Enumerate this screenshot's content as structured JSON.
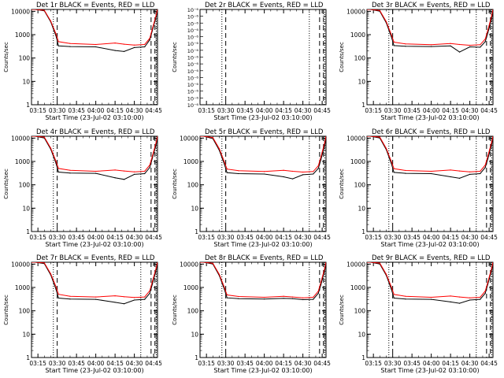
{
  "chart_data": [
    {
      "type": "line",
      "title": "Det 1r BLACK = Events, RED = LLD",
      "xlabel": "Start Time (23-Jul-02 03:10:00)",
      "ylabel": "Counts/sec",
      "xlim": [
        "03:10",
        "04:48"
      ],
      "ylim": [
        1,
        12000
      ],
      "yscale": "log",
      "xticks": [
        "03:15",
        "03:30",
        "03:45",
        "04:00",
        "04:15",
        "04:30",
        "04:45"
      ],
      "yticks": [
        "1",
        "10",
        "100",
        "1000",
        "10000"
      ],
      "x": [
        "03:10",
        "03:13",
        "03:20",
        "03:25",
        "03:29",
        "03:31",
        "03:40",
        "04:00",
        "04:15",
        "04:22",
        "04:30",
        "04:38",
        "04:42",
        "04:44",
        "04:47",
        "04:48"
      ],
      "series": [
        {
          "name": "Events",
          "color": "#000000",
          "values": [
            12000,
            12000,
            10500,
            3500,
            900,
            330,
            310,
            300,
            210,
            190,
            280,
            300,
            600,
            1500,
            6000,
            12000
          ]
        },
        {
          "name": "LLD",
          "color": "#ff0000",
          "values": [
            12000,
            12000,
            11000,
            3800,
            1100,
            500,
            420,
            380,
            440,
            390,
            360,
            380,
            700,
            1800,
            7000,
            12000
          ]
        }
      ],
      "dashed_lines": [
        "03:30",
        "04:43",
        "04:46"
      ],
      "dotted_lines": [
        "03:27",
        "04:35",
        "04:47"
      ]
    },
    {
      "type": "line",
      "title": "Det 2r BLACK = Events, RED = LLD",
      "xlabel": "Start Time (23-Jul-02 03:10:00)",
      "ylabel": "Counts/sec",
      "xlim": [
        "03:10",
        "04:48"
      ],
      "ylim": [
        9e-08,
        1.1e-06
      ],
      "yscale": "log",
      "xticks": [
        "03:15",
        "03:30",
        "03:45",
        "04:00",
        "04:15",
        "04:30",
        "04:45"
      ],
      "yticks": [
        "10⁻⁶",
        "10⁻⁶",
        "10⁻⁶",
        "10⁻⁶",
        "10⁻⁶",
        "10⁻⁶",
        "10⁻⁶",
        "10⁻⁶",
        "10⁻⁶",
        "10⁻⁶",
        "10⁻⁶",
        "10⁻⁶",
        "10⁻⁶",
        "10⁻⁶",
        "10⁻⁶"
      ],
      "x": [],
      "series": [],
      "dashed_lines": [
        "03:30",
        "04:43",
        "04:46"
      ],
      "dotted_lines": [
        "03:27",
        "04:35",
        "04:47"
      ]
    },
    {
      "type": "line",
      "title": "Det 3r BLACK = Events, RED = LLD",
      "xlabel": "Start Time (23-Jul-02 03:10:00)",
      "ylabel": "Counts/sec",
      "xlim": [
        "03:10",
        "04:48"
      ],
      "ylim": [
        1,
        12000
      ],
      "yscale": "log",
      "xticks": [
        "03:15",
        "03:30",
        "03:45",
        "04:00",
        "04:15",
        "04:30",
        "04:45"
      ],
      "yticks": [
        "1",
        "10",
        "100",
        "1000",
        "10000"
      ],
      "x": [
        "03:10",
        "03:13",
        "03:20",
        "03:25",
        "03:29",
        "03:31",
        "03:40",
        "04:00",
        "04:15",
        "04:22",
        "04:30",
        "04:38",
        "04:42",
        "04:44",
        "04:47",
        "04:48"
      ],
      "series": [
        {
          "name": "Events",
          "color": "#000000",
          "values": [
            12000,
            12000,
            10000,
            3200,
            800,
            340,
            320,
            310,
            330,
            180,
            300,
            290,
            500,
            1200,
            5000,
            12000
          ]
        },
        {
          "name": "LLD",
          "color": "#ff0000",
          "values": [
            12000,
            12000,
            10800,
            3600,
            1000,
            480,
            400,
            370,
            420,
            380,
            350,
            370,
            650,
            1600,
            6500,
            12000
          ]
        }
      ],
      "dashed_lines": [
        "03:30",
        "04:43",
        "04:46"
      ],
      "dotted_lines": [
        "03:27",
        "04:35",
        "04:47"
      ]
    },
    {
      "type": "line",
      "title": "Det 4r BLACK = Events, RED = LLD",
      "xlabel": "Start Time (23-Jul-02 03:10:00)",
      "ylabel": "Counts/sec",
      "xlim": [
        "03:10",
        "04:48"
      ],
      "ylim": [
        1,
        12000
      ],
      "yscale": "log",
      "xticks": [
        "03:15",
        "03:30",
        "03:45",
        "04:00",
        "04:15",
        "04:30",
        "04:45"
      ],
      "yticks": [
        "1",
        "10",
        "100",
        "1000",
        "10000"
      ],
      "x": [
        "03:10",
        "03:13",
        "03:20",
        "03:25",
        "03:29",
        "03:31",
        "03:40",
        "04:00",
        "04:15",
        "04:22",
        "04:30",
        "04:38",
        "04:42",
        "04:44",
        "04:47",
        "04:48"
      ],
      "series": [
        {
          "name": "Events",
          "color": "#000000",
          "values": [
            12000,
            12000,
            10000,
            3300,
            850,
            350,
            320,
            310,
            200,
            170,
            280,
            300,
            550,
            1400,
            5500,
            12000
          ]
        },
        {
          "name": "LLD",
          "color": "#ff0000",
          "values": [
            12000,
            12000,
            11000,
            3700,
            1050,
            500,
            420,
            380,
            430,
            390,
            360,
            380,
            700,
            1700,
            6800,
            12000
          ]
        }
      ],
      "dashed_lines": [
        "03:30",
        "04:43",
        "04:46"
      ],
      "dotted_lines": [
        "03:27",
        "04:35",
        "04:47"
      ]
    },
    {
      "type": "line",
      "title": "Det 5r BLACK = Events, RED = LLD",
      "xlabel": "Start Time (23-Jul-02 03:10:00)",
      "ylabel": "Counts/sec",
      "xlim": [
        "03:10",
        "04:48"
      ],
      "ylim": [
        1,
        12000
      ],
      "yscale": "log",
      "xticks": [
        "03:15",
        "03:30",
        "03:45",
        "04:00",
        "04:15",
        "04:30",
        "04:45"
      ],
      "yticks": [
        "1",
        "10",
        "100",
        "1000",
        "10000"
      ],
      "x": [
        "03:10",
        "03:13",
        "03:20",
        "03:25",
        "03:29",
        "03:31",
        "03:40",
        "04:00",
        "04:15",
        "04:22",
        "04:30",
        "04:38",
        "04:42",
        "04:44",
        "04:47",
        "04:48"
      ],
      "series": [
        {
          "name": "Events",
          "color": "#000000",
          "values": [
            12000,
            12000,
            9500,
            3000,
            750,
            330,
            300,
            290,
            220,
            180,
            270,
            290,
            500,
            1200,
            5000,
            12000
          ]
        },
        {
          "name": "LLD",
          "color": "#ff0000",
          "values": [
            12000,
            12000,
            10500,
            3500,
            950,
            470,
            400,
            370,
            420,
            380,
            350,
            370,
            650,
            1600,
            6500,
            12000
          ]
        }
      ],
      "dashed_lines": [
        "03:30",
        "04:43",
        "04:46"
      ],
      "dotted_lines": [
        "03:27",
        "04:35",
        "04:47"
      ]
    },
    {
      "type": "line",
      "title": "Det 6r BLACK = Events, RED = LLD",
      "xlabel": "Start Time (23-Jul-02 03:10:00)",
      "ylabel": "Counts/sec",
      "xlim": [
        "03:10",
        "04:48"
      ],
      "ylim": [
        1,
        12000
      ],
      "yscale": "log",
      "xticks": [
        "03:15",
        "03:30",
        "03:45",
        "04:00",
        "04:15",
        "04:30",
        "04:45"
      ],
      "yticks": [
        "1",
        "10",
        "100",
        "1000",
        "10000"
      ],
      "x": [
        "03:10",
        "03:13",
        "03:20",
        "03:25",
        "03:29",
        "03:31",
        "03:40",
        "04:00",
        "04:15",
        "04:22",
        "04:30",
        "04:38",
        "04:42",
        "04:44",
        "04:47",
        "04:48"
      ],
      "series": [
        {
          "name": "Events",
          "color": "#000000",
          "values": [
            12000,
            12000,
            10000,
            3200,
            800,
            340,
            310,
            300,
            220,
            190,
            280,
            300,
            550,
            1300,
            5500,
            12000
          ]
        },
        {
          "name": "LLD",
          "color": "#ff0000",
          "values": [
            12000,
            12000,
            11000,
            3600,
            1000,
            490,
            410,
            380,
            430,
            390,
            360,
            380,
            700,
            1700,
            6800,
            12000
          ]
        }
      ],
      "dashed_lines": [
        "03:30",
        "04:43",
        "04:46"
      ],
      "dotted_lines": [
        "03:27",
        "04:35",
        "04:47"
      ]
    },
    {
      "type": "line",
      "title": "Det 7r BLACK = Events, RED = LLD",
      "xlabel": "Start Time (23-Jul-02 03:10:00)",
      "ylabel": "Counts/sec",
      "xlim": [
        "03:10",
        "04:48"
      ],
      "ylim": [
        1,
        12000
      ],
      "yscale": "log",
      "xticks": [
        "03:15",
        "03:30",
        "03:45",
        "04:00",
        "04:15",
        "04:30",
        "04:45"
      ],
      "yticks": [
        "1",
        "10",
        "100",
        "1000",
        "10000"
      ],
      "x": [
        "03:10",
        "03:13",
        "03:20",
        "03:25",
        "03:29",
        "03:31",
        "03:40",
        "04:00",
        "04:15",
        "04:22",
        "04:30",
        "04:38",
        "04:42",
        "04:44",
        "04:47",
        "04:48"
      ],
      "series": [
        {
          "name": "Events",
          "color": "#000000",
          "values": [
            12000,
            12000,
            10500,
            3400,
            850,
            350,
            320,
            310,
            230,
            200,
            290,
            310,
            560,
            1400,
            5800,
            12000
          ]
        },
        {
          "name": "LLD",
          "color": "#ff0000",
          "values": [
            12000,
            12000,
            11200,
            3800,
            1100,
            510,
            420,
            390,
            440,
            400,
            370,
            390,
            720,
            1800,
            7000,
            12000
          ]
        }
      ],
      "dashed_lines": [
        "03:30",
        "04:43",
        "04:46"
      ],
      "dotted_lines": [
        "03:27",
        "04:35",
        "04:47"
      ]
    },
    {
      "type": "line",
      "title": "Det 8r BLACK = Events, RED = LLD",
      "xlabel": "Start Time (23-Jul-02 03:10:00)",
      "ylabel": "Counts/sec",
      "xlim": [
        "03:10",
        "04:48"
      ],
      "ylim": [
        1,
        12000
      ],
      "yscale": "log",
      "xticks": [
        "03:15",
        "03:30",
        "03:45",
        "04:00",
        "04:15",
        "04:30",
        "04:45"
      ],
      "yticks": [
        "1",
        "10",
        "100",
        "1000",
        "10000"
      ],
      "x": [
        "03:10",
        "03:13",
        "03:20",
        "03:25",
        "03:29",
        "03:31",
        "03:40",
        "04:00",
        "04:15",
        "04:22",
        "04:30",
        "04:38",
        "04:42",
        "04:44",
        "04:47",
        "04:48"
      ],
      "series": [
        {
          "name": "Events",
          "color": "#000000",
          "values": [
            12000,
            12000,
            10000,
            3200,
            820,
            360,
            330,
            320,
            340,
            330,
            300,
            310,
            560,
            1300,
            5500,
            12000
          ]
        },
        {
          "name": "LLD",
          "color": "#ff0000",
          "values": [
            12000,
            12000,
            10800,
            3600,
            1000,
            480,
            410,
            380,
            420,
            390,
            360,
            380,
            690,
            1700,
            6700,
            12000
          ]
        }
      ],
      "dashed_lines": [
        "03:30",
        "04:43",
        "04:46"
      ],
      "dotted_lines": [
        "03:27",
        "04:35",
        "04:47"
      ]
    },
    {
      "type": "line",
      "title": "Det 9r BLACK = Events, RED = LLD",
      "xlabel": "Start Time (23-Jul-02 03:10:00)",
      "ylabel": "Counts/sec",
      "xlim": [
        "03:10",
        "04:48"
      ],
      "ylim": [
        1,
        12000
      ],
      "yscale": "log",
      "xticks": [
        "03:15",
        "03:30",
        "03:45",
        "04:00",
        "04:15",
        "04:30",
        "04:45"
      ],
      "yticks": [
        "1",
        "10",
        "100",
        "1000",
        "10000"
      ],
      "x": [
        "03:10",
        "03:13",
        "03:20",
        "03:25",
        "03:29",
        "03:31",
        "03:40",
        "04:00",
        "04:15",
        "04:22",
        "04:30",
        "04:38",
        "04:42",
        "04:44",
        "04:47",
        "04:48"
      ],
      "series": [
        {
          "name": "Events",
          "color": "#000000",
          "values": [
            12000,
            12000,
            10000,
            3300,
            830,
            350,
            320,
            310,
            240,
            210,
            290,
            310,
            560,
            1400,
            5600,
            12000
          ]
        },
        {
          "name": "LLD",
          "color": "#ff0000",
          "values": [
            12000,
            12000,
            11000,
            3700,
            1050,
            500,
            420,
            380,
            430,
            390,
            360,
            380,
            700,
            1700,
            6800,
            12000
          ]
        }
      ],
      "dashed_lines": [
        "03:30",
        "04:43",
        "04:46"
      ],
      "dotted_lines": [
        "03:27",
        "04:35",
        "04:47"
      ]
    }
  ]
}
